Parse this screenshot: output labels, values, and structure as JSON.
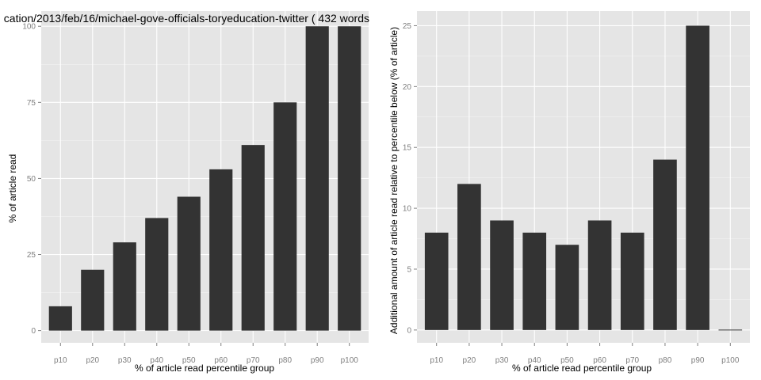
{
  "chart_data": [
    {
      "type": "bar",
      "title": "cation/2013/feb/16/michael-gove-officials-toryeducation-twitter ( 432 words",
      "xlabel": "% of article read percentile group",
      "ylabel": "% of article read",
      "categories": [
        "p10",
        "p20",
        "p30",
        "p40",
        "p50",
        "p60",
        "p70",
        "p80",
        "p90",
        "p100"
      ],
      "values": [
        8,
        20,
        29,
        37,
        44,
        53,
        61,
        75,
        100,
        100
      ],
      "ylim": [
        -4,
        105
      ],
      "yticks": [
        0,
        25,
        50,
        75,
        100
      ],
      "grid": true,
      "bar_color": "#333333",
      "panel_color": "#e5e5e5"
    },
    {
      "type": "bar",
      "title": "",
      "xlabel": "% of article read percentile group",
      "ylabel": "Additional amount of article read relative to percentile below (% of article)",
      "categories": [
        "p10",
        "p20",
        "p30",
        "p40",
        "p50",
        "p60",
        "p70",
        "p80",
        "p90",
        "p100"
      ],
      "values": [
        8,
        12,
        9,
        8,
        7,
        9,
        8,
        14,
        25,
        0
      ],
      "ylim": [
        -1.05,
        26.2
      ],
      "yticks": [
        0,
        5,
        10,
        15,
        20,
        25
      ],
      "grid": true,
      "bar_color": "#333333",
      "panel_color": "#e5e5e5"
    }
  ]
}
